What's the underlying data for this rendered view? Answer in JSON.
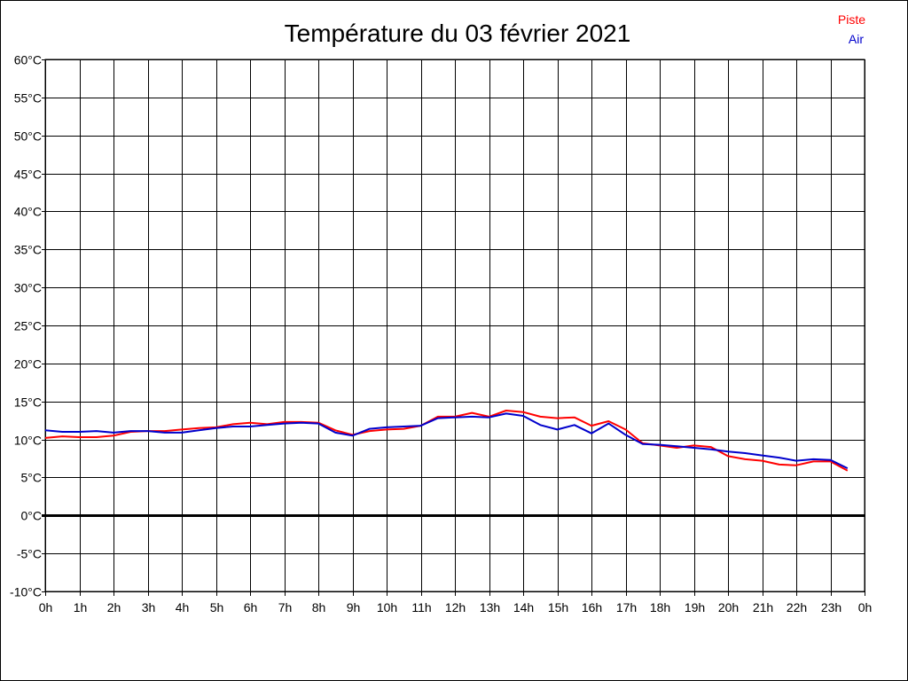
{
  "chart_data": {
    "type": "line",
    "title": "Température du 03 février 2021",
    "xlabel": "",
    "ylabel": "",
    "xlim": [
      0,
      24
    ],
    "ylim": [
      -10,
      60
    ],
    "grid": true,
    "legend_position": "top-right",
    "x_ticks": [
      "0h",
      "1h",
      "2h",
      "3h",
      "4h",
      "5h",
      "6h",
      "7h",
      "8h",
      "9h",
      "10h",
      "11h",
      "12h",
      "13h",
      "14h",
      "15h",
      "16h",
      "17h",
      "18h",
      "19h",
      "20h",
      "21h",
      "22h",
      "23h",
      "0h"
    ],
    "y_ticks": [
      "60°C",
      "55°C",
      "50°C",
      "45°C",
      "40°C",
      "35°C",
      "30°C",
      "25°C",
      "20°C",
      "15°C",
      "10°C",
      "5°C",
      "0°C",
      "-5°C",
      "-10°C"
    ],
    "x": [
      0,
      0.5,
      1,
      1.5,
      2,
      2.5,
      3,
      3.5,
      4,
      4.5,
      5,
      5.5,
      6,
      6.5,
      7,
      7.5,
      8,
      8.5,
      9,
      9.5,
      10,
      10.5,
      11,
      11.5,
      12,
      12.5,
      13,
      13.5,
      14,
      14.5,
      15,
      15.5,
      16,
      16.5,
      17,
      17.5,
      18,
      18.5,
      19,
      19.5,
      20,
      20.5,
      21,
      21.5,
      22,
      22.5,
      23,
      23.5
    ],
    "series": [
      {
        "name": "Piste",
        "color": "#ff0000",
        "values": [
          10.2,
          10.4,
          10.3,
          10.3,
          10.5,
          11.0,
          11.1,
          11.1,
          11.3,
          11.5,
          11.6,
          12.0,
          12.2,
          12.0,
          12.3,
          12.3,
          12.2,
          11.2,
          10.6,
          11.1,
          11.3,
          11.4,
          11.8,
          13.0,
          13.0,
          13.5,
          13.0,
          13.8,
          13.6,
          13.0,
          12.8,
          12.9,
          11.8,
          12.4,
          11.3,
          9.5,
          9.2,
          8.9,
          9.2,
          9.0,
          7.8,
          7.4,
          7.2,
          6.7,
          6.6,
          7.1,
          7.1,
          5.9
        ]
      },
      {
        "name": "Air",
        "color": "#0000cc",
        "values": [
          11.2,
          11.0,
          11.0,
          11.1,
          10.9,
          11.1,
          11.1,
          10.9,
          10.9,
          11.2,
          11.5,
          11.7,
          11.7,
          11.9,
          12.1,
          12.2,
          12.1,
          10.9,
          10.5,
          11.4,
          11.6,
          11.7,
          11.8,
          12.8,
          12.9,
          13.0,
          12.9,
          13.4,
          13.1,
          11.9,
          11.3,
          11.9,
          10.8,
          12.1,
          10.6,
          9.4,
          9.3,
          9.1,
          8.9,
          8.7,
          8.4,
          8.2,
          7.9,
          7.6,
          7.2,
          7.4,
          7.3,
          6.2
        ]
      }
    ]
  }
}
